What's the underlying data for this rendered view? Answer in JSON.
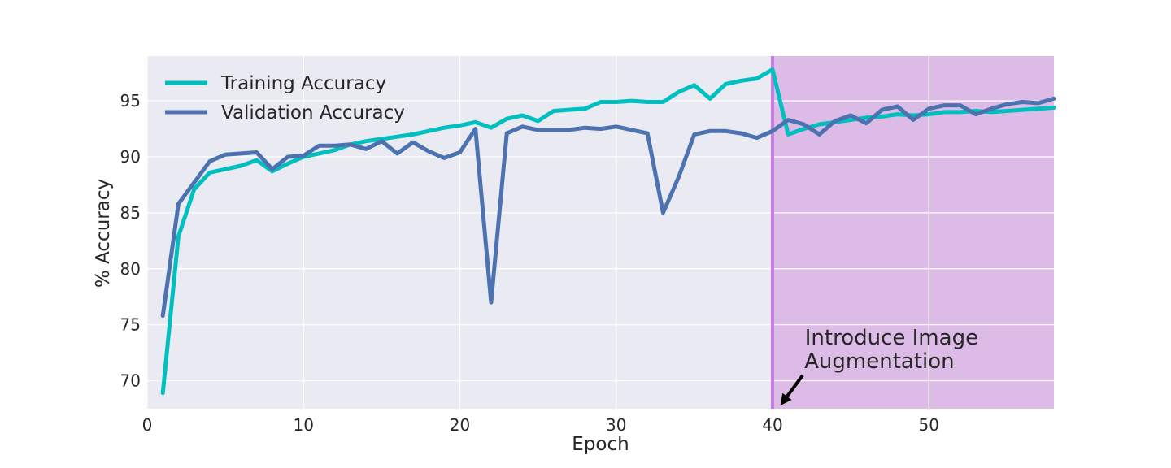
{
  "chart_data": {
    "type": "line",
    "xlabel": "Epoch",
    "ylabel": "% Accuracy",
    "xlim": [
      0,
      58
    ],
    "ylim": [
      67.5,
      99
    ],
    "xticks": [
      0,
      10,
      20,
      30,
      40,
      50
    ],
    "yticks": [
      70,
      75,
      80,
      85,
      90,
      95
    ],
    "grid": true,
    "legend_position": "top-left",
    "series": [
      {
        "name": "Training Accuracy",
        "color": "#00bfbf",
        "x": [
          1,
          2,
          3,
          4,
          5,
          6,
          7,
          8,
          9,
          10,
          11,
          12,
          13,
          14,
          15,
          16,
          17,
          18,
          19,
          20,
          21,
          22,
          23,
          24,
          25,
          26,
          27,
          28,
          29,
          30,
          31,
          32,
          33,
          34,
          35,
          36,
          37,
          38,
          39,
          40,
          41,
          42,
          43,
          44,
          45,
          46,
          47,
          48,
          49,
          50,
          51,
          52,
          53,
          54,
          55,
          56,
          57,
          58
        ],
        "values": [
          68.9,
          82.9,
          87.1,
          88.6,
          88.9,
          89.2,
          89.7,
          88.7,
          89.4,
          90.0,
          90.3,
          90.6,
          91.1,
          91.4,
          91.6,
          91.8,
          92.0,
          92.3,
          92.6,
          92.8,
          93.1,
          92.6,
          93.4,
          93.7,
          93.2,
          94.1,
          94.2,
          94.3,
          94.9,
          94.9,
          95.0,
          94.9,
          94.9,
          95.8,
          96.4,
          95.2,
          96.5,
          96.8,
          97.0,
          97.8,
          92.0,
          92.5,
          92.9,
          93.1,
          93.3,
          93.5,
          93.6,
          93.8,
          93.7,
          93.8,
          94.0,
          94.0,
          94.1,
          94.0,
          94.1,
          94.2,
          94.3,
          94.4
        ]
      },
      {
        "name": "Validation Accuracy",
        "color": "#4c72b0",
        "x": [
          1,
          2,
          3,
          4,
          5,
          6,
          7,
          8,
          9,
          10,
          11,
          12,
          13,
          14,
          15,
          16,
          17,
          18,
          19,
          20,
          21,
          22,
          23,
          24,
          25,
          26,
          27,
          28,
          29,
          30,
          31,
          32,
          33,
          34,
          35,
          36,
          37,
          38,
          39,
          40,
          41,
          42,
          43,
          44,
          45,
          46,
          47,
          48,
          49,
          50,
          51,
          52,
          53,
          54,
          55,
          56,
          57,
          58
        ],
        "values": [
          75.8,
          85.8,
          87.7,
          89.6,
          90.2,
          90.3,
          90.4,
          88.9,
          90.0,
          90.1,
          91.0,
          91.0,
          91.1,
          90.7,
          91.4,
          90.3,
          91.3,
          90.5,
          89.9,
          90.4,
          92.5,
          77.0,
          92.1,
          92.7,
          92.4,
          92.4,
          92.4,
          92.6,
          92.5,
          92.7,
          92.4,
          92.1,
          85.0,
          88.2,
          92.0,
          92.3,
          92.3,
          92.1,
          91.7,
          92.3,
          93.3,
          92.9,
          92.0,
          93.2,
          93.7,
          93.0,
          94.2,
          94.5,
          93.3,
          94.3,
          94.6,
          94.6,
          93.8,
          94.3,
          94.7,
          94.9,
          94.8,
          95.2
        ]
      }
    ],
    "shaded_region": {
      "x_start": 40,
      "x_end": 58,
      "color": "#dcbbe7"
    },
    "vertical_line": {
      "x": 40,
      "color": "#c77ee0"
    },
    "annotation": {
      "text_line1": "Introduce Image",
      "text_line2": "Augmentation",
      "arrow_to_x": 40.5,
      "arrow_to_y": 68.0,
      "text_x": 42,
      "text_y": 71.3
    }
  }
}
